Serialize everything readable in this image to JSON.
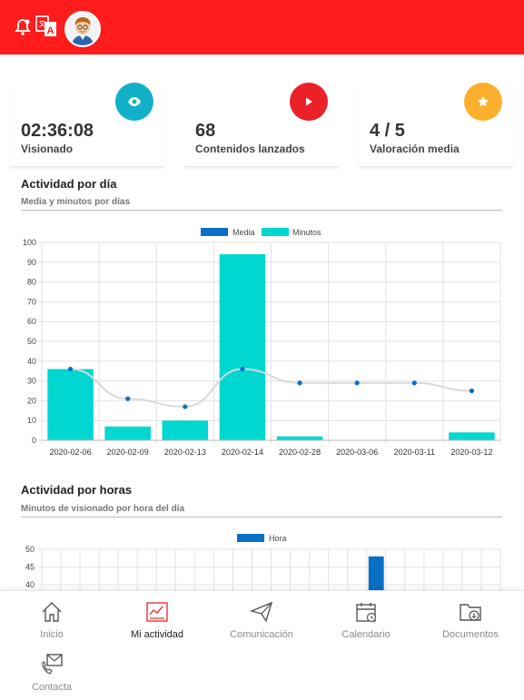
{
  "colors": {
    "brand": "#fe1c1c",
    "media": "#0a6fc7",
    "minutos": "#00d7d0",
    "eye": "#12b0c8",
    "play": "#ea2127",
    "star": "#fbb02d"
  },
  "header": {
    "icons": [
      "bell-icon",
      "translate-icon",
      "avatar"
    ]
  },
  "kpis": [
    {
      "value": "02:36:08",
      "label": "Visionado",
      "icon": "eye-icon"
    },
    {
      "value": "68",
      "label": "Contenidos lanzados",
      "icon": "play-icon"
    },
    {
      "value": "4 / 5",
      "label": "Valoración media",
      "icon": "star-icon"
    }
  ],
  "activity_day": {
    "title": "Actividad por día",
    "subtitle": "Media y minutos por días"
  },
  "activity_hours": {
    "title": "Actividad por horas",
    "subtitle": "Minutos de visionado por hora del día"
  },
  "chart_data": [
    {
      "type": "bar",
      "categories": [
        "2020-02-06",
        "2020-02-09",
        "2020-02-13",
        "2020-02-14",
        "2020-02-28",
        "2020-03-06",
        "2020-03-11",
        "2020-03-12"
      ],
      "series": [
        {
          "name": "Media",
          "type": "line",
          "values": [
            36,
            21,
            17,
            36,
            29,
            29,
            29,
            25
          ]
        },
        {
          "name": "Minutos",
          "type": "bar",
          "values": [
            36,
            7,
            10,
            94,
            2,
            0,
            0,
            4
          ]
        }
      ],
      "ylim": [
        0,
        100
      ],
      "yticks": [
        0,
        10,
        20,
        30,
        40,
        50,
        60,
        70,
        80,
        90,
        100
      ],
      "grid": true,
      "legend": "top-center"
    },
    {
      "type": "bar",
      "series": [
        {
          "name": "Hora",
          "values": [
            0,
            0,
            0,
            0,
            0,
            0,
            0,
            0,
            0,
            0,
            0,
            0,
            0,
            0,
            0,
            0,
            0,
            48,
            0,
            0,
            0,
            0,
            0,
            0
          ]
        }
      ],
      "yticks_visible": [
        40,
        45,
        50
      ],
      "grid": true,
      "legend": "top-center"
    }
  ],
  "nav": [
    {
      "label": "Inicio",
      "icon": "home-icon"
    },
    {
      "label": "Mi actividad",
      "icon": "activity-icon",
      "active": true
    },
    {
      "label": "Comunicación",
      "icon": "paper-plane-icon"
    },
    {
      "label": "Calendario",
      "icon": "calendar-icon"
    },
    {
      "label": "Documentos",
      "icon": "folder-download-icon"
    },
    {
      "label": "Contacta",
      "icon": "contact-mail-icon"
    }
  ]
}
